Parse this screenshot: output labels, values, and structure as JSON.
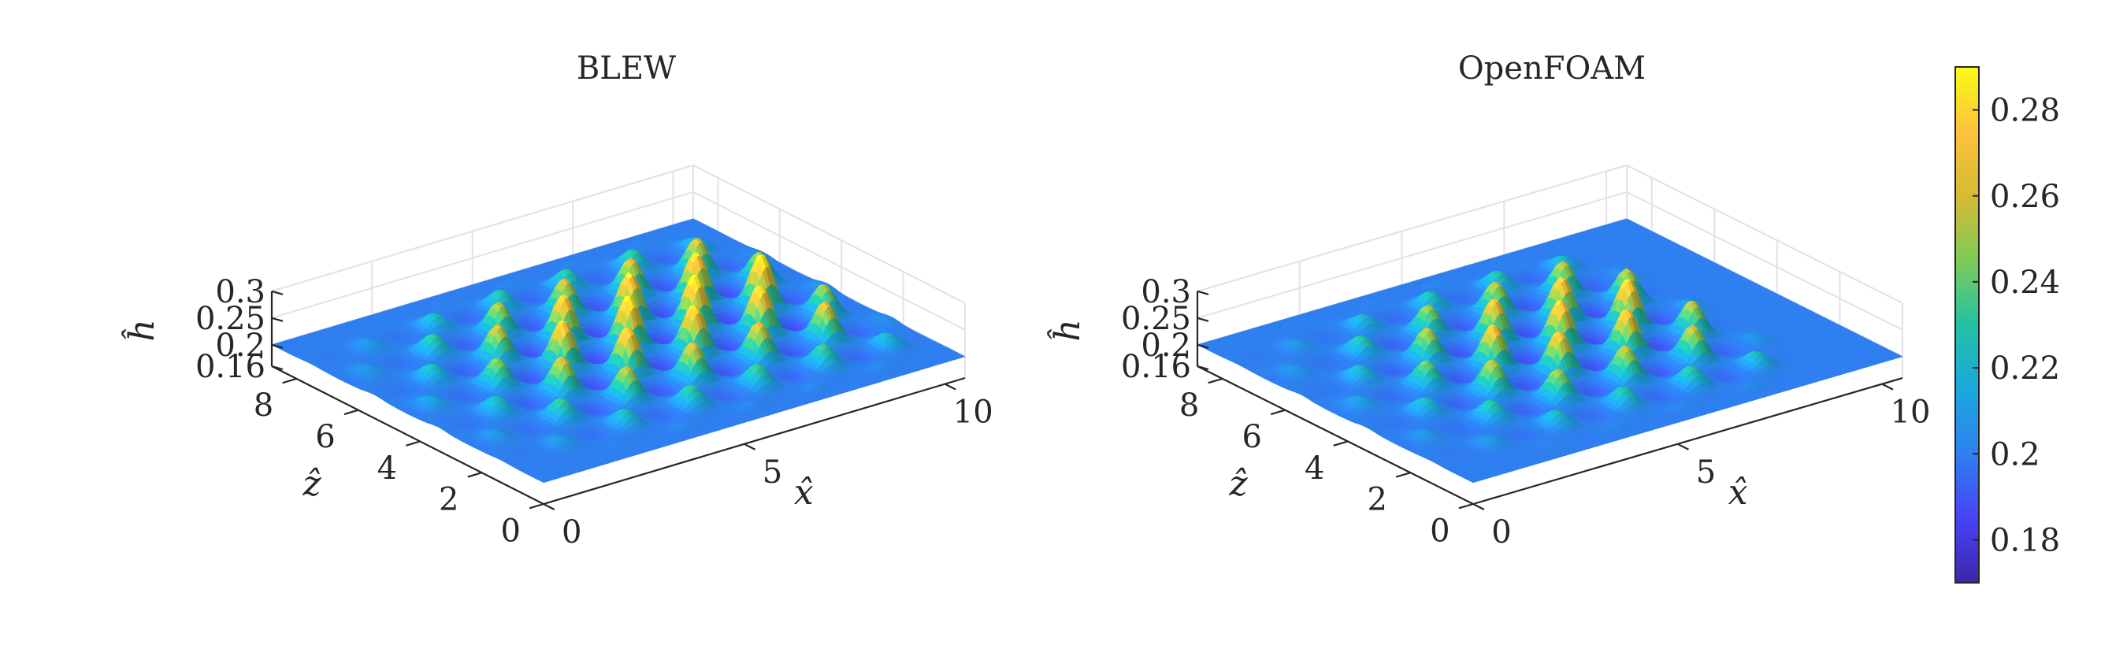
{
  "colorbar": {
    "min": 0.17,
    "max": 0.29,
    "ticks": [
      "0.18",
      "0.2",
      "0.22",
      "0.24",
      "0.26",
      "0.28"
    ],
    "colormap": [
      "#3e26a8",
      "#4743f8",
      "#2f7ff0",
      "#1aa9dc",
      "#21c2a4",
      "#7ecb57",
      "#d7ba34",
      "#fcc33a",
      "#f9fb15"
    ]
  },
  "chart_data": [
    {
      "type": "surface",
      "title": "BLEW",
      "xlabel": "x̂",
      "ylabel": "ẑ",
      "zlabel": "ĥ",
      "xlim": [
        0,
        10.5
      ],
      "ylim": [
        0,
        8.8
      ],
      "zlim": [
        0.16,
        0.3
      ],
      "xticks": [
        "0",
        "5",
        "10"
      ],
      "yticks": [
        "0",
        "2",
        "4",
        "6",
        "8"
      ],
      "zticks": [
        "0.16",
        "0.2",
        "0.25",
        "0.3"
      ],
      "base_height": 0.2,
      "wave": {
        "x_period": 1.65,
        "z_period": 2.1,
        "peak_height": 0.29,
        "trough_height": 0.175,
        "decay_start_x": 9.0
      }
    },
    {
      "type": "surface",
      "title": "OpenFOAM",
      "xlabel": "x̂",
      "ylabel": "ẑ",
      "zlabel": "ĥ",
      "xlim": [
        0,
        10.5
      ],
      "ylim": [
        0,
        8.8
      ],
      "zlim": [
        0.16,
        0.3
      ],
      "xticks": [
        "0",
        "5",
        "10"
      ],
      "yticks": [
        "0",
        "2",
        "4",
        "6",
        "8"
      ],
      "zticks": [
        "0.16",
        "0.2",
        "0.25",
        "0.3"
      ],
      "base_height": 0.2,
      "wave": {
        "x_period": 1.65,
        "z_period": 2.1,
        "peak_height": 0.28,
        "trough_height": 0.175,
        "decay_start_x": 7.5
      }
    }
  ]
}
